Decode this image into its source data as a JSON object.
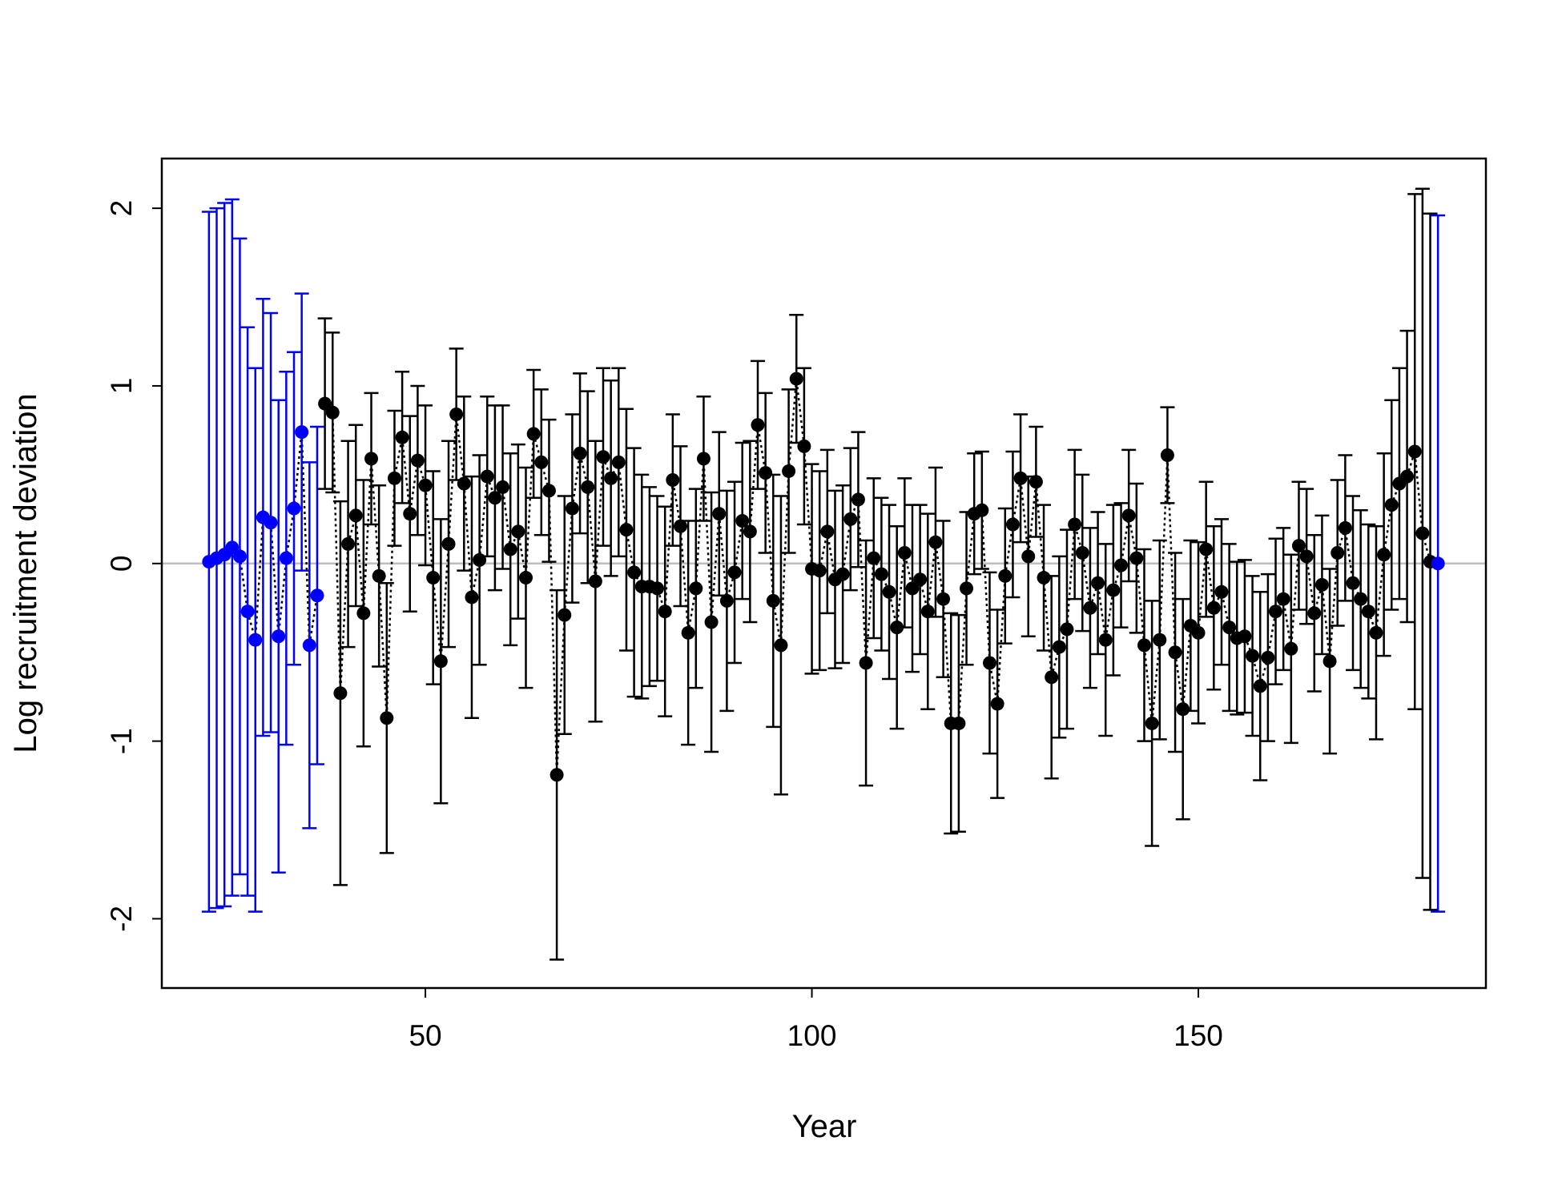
{
  "chart_data": {
    "type": "errorbar",
    "x_label": "Year",
    "y_label": "Log recruitment deviation",
    "xlim": [
      15.9,
      187.2
    ],
    "ylim": [
      -2.39,
      2.28
    ],
    "xticks": [
      50,
      100,
      150
    ],
    "yticks": [
      -2,
      -1,
      0,
      1,
      2
    ],
    "reference_line": 0,
    "reference_color": "#bebebe",
    "line_color": "black",
    "series": [
      {
        "color": "blue",
        "x": [
          22,
          23,
          24,
          25,
          26,
          27,
          28,
          29,
          30,
          31,
          32,
          33,
          34,
          35,
          36
        ],
        "values": [
          0.01,
          0.03,
          0.05,
          0.09,
          0.04,
          -0.27,
          -0.43,
          0.26,
          0.23,
          -0.41,
          0.03,
          0.31,
          0.74,
          -0.46,
          -0.18
        ],
        "errors": [
          1.97,
          1.97,
          1.98,
          1.96,
          1.79,
          1.6,
          1.53,
          1.23,
          1.18,
          1.33,
          1.05,
          0.88,
          0.78,
          1.03,
          0.95
        ]
      },
      {
        "color": "black",
        "x": [
          37,
          38,
          39,
          40,
          41,
          42,
          43,
          44,
          45,
          46,
          47,
          48,
          49,
          50,
          51,
          52,
          53,
          54,
          55,
          56,
          57,
          58,
          59,
          60,
          61,
          62,
          63,
          64,
          65,
          66,
          67,
          68,
          69,
          70,
          71,
          72,
          73,
          74,
          75,
          76,
          77,
          78,
          79,
          80,
          81,
          82,
          83,
          84,
          85,
          86,
          87,
          88,
          89,
          90,
          91,
          92,
          93,
          94,
          95,
          96,
          97,
          98,
          99,
          100,
          101,
          102,
          103,
          104,
          105,
          106,
          107,
          108,
          109,
          110,
          111,
          112,
          113,
          114,
          115,
          116,
          117,
          118,
          119,
          120,
          121,
          122,
          123,
          124,
          125,
          126,
          127,
          128,
          129,
          130,
          131,
          132,
          133,
          134,
          135,
          136,
          137,
          138,
          139,
          140,
          141,
          142,
          143,
          144,
          145,
          146,
          147,
          148,
          149,
          150,
          151,
          152,
          153,
          154,
          155,
          156,
          157,
          158,
          159,
          160,
          161,
          162,
          163,
          164,
          165,
          166,
          167,
          168,
          169,
          170,
          171,
          172,
          173,
          174,
          175,
          176,
          177,
          178,
          179,
          180
        ],
        "values": [
          0.9,
          0.85,
          -0.73,
          0.11,
          0.27,
          -0.28,
          0.59,
          -0.07,
          -0.87,
          0.48,
          0.71,
          0.28,
          0.58,
          0.44,
          -0.08,
          -0.55,
          0.11,
          0.84,
          0.45,
          -0.19,
          0.02,
          0.49,
          0.37,
          0.43,
          0.08,
          0.18,
          -0.08,
          0.73,
          0.57,
          0.41,
          -1.19,
          -0.29,
          0.31,
          0.62,
          0.43,
          -0.1,
          0.6,
          0.48,
          0.57,
          0.19,
          -0.05,
          -0.13,
          -0.13,
          -0.14,
          -0.27,
          0.47,
          0.21,
          -0.39,
          -0.14,
          0.59,
          -0.33,
          0.28,
          -0.21,
          -0.05,
          0.24,
          0.18,
          0.78,
          0.51,
          -0.21,
          -0.46,
          0.52,
          1.04,
          0.66,
          -0.03,
          -0.04,
          0.18,
          -0.09,
          -0.06,
          0.25,
          0.36,
          -0.56,
          0.03,
          -0.06,
          -0.16,
          -0.36,
          0.06,
          -0.14,
          -0.09,
          -0.27,
          0.12,
          -0.2,
          -0.9,
          -0.9,
          -0.14,
          0.28,
          0.3,
          -0.56,
          -0.79,
          -0.07,
          0.22,
          0.48,
          0.04,
          0.46,
          -0.08,
          -0.64,
          -0.47,
          -0.37,
          0.22,
          0.06,
          -0.25,
          -0.11,
          -0.43,
          -0.15,
          -0.01,
          0.27,
          0.03,
          -0.46,
          -0.9,
          -0.43,
          0.61,
          -0.5,
          -0.82,
          -0.35,
          -0.39,
          0.08,
          -0.25,
          -0.16,
          -0.36,
          -0.42,
          -0.41,
          -0.52,
          -0.69,
          -0.53,
          -0.27,
          -0.2,
          -0.48,
          0.1,
          0.04,
          -0.28,
          -0.12,
          -0.55,
          0.06,
          0.2,
          -0.11,
          -0.2,
          -0.27,
          -0.39,
          0.05,
          0.33,
          0.45,
          0.49,
          0.63,
          0.17,
          0.01
        ],
        "errors": [
          0.48,
          0.45,
          1.08,
          0.58,
          0.51,
          0.75,
          0.37,
          0.51,
          0.76,
          0.38,
          0.37,
          0.55,
          0.42,
          0.45,
          0.6,
          0.8,
          0.58,
          0.37,
          0.49,
          0.68,
          0.59,
          0.45,
          0.52,
          0.46,
          0.54,
          0.49,
          0.62,
          0.36,
          0.41,
          0.4,
          1.04,
          0.67,
          0.53,
          0.45,
          0.54,
          0.79,
          0.5,
          0.55,
          0.53,
          0.68,
          0.7,
          0.63,
          0.56,
          0.52,
          0.59,
          0.37,
          0.45,
          0.63,
          0.56,
          0.35,
          0.73,
          0.46,
          0.62,
          0.51,
          0.44,
          0.51,
          0.36,
          0.45,
          0.71,
          0.84,
          0.46,
          0.36,
          0.44,
          0.59,
          0.56,
          0.46,
          0.5,
          0.5,
          0.4,
          0.38,
          0.69,
          0.45,
          0.43,
          0.49,
          0.57,
          0.42,
          0.47,
          0.42,
          0.55,
          0.42,
          0.44,
          0.62,
          0.61,
          0.43,
          0.34,
          0.33,
          0.51,
          0.53,
          0.38,
          0.41,
          0.36,
          0.45,
          0.31,
          0.41,
          0.57,
          0.51,
          0.56,
          0.42,
          0.44,
          0.45,
          0.4,
          0.54,
          0.48,
          0.35,
          0.37,
          0.42,
          0.54,
          0.69,
          0.56,
          0.27,
          0.56,
          0.62,
          0.48,
          0.51,
          0.38,
          0.46,
          0.41,
          0.47,
          0.43,
          0.43,
          0.45,
          0.53,
          0.47,
          0.41,
          0.4,
          0.53,
          0.36,
          0.38,
          0.44,
          0.39,
          0.52,
          0.41,
          0.41,
          0.49,
          0.5,
          0.49,
          0.6,
          0.57,
          0.59,
          0.65,
          0.82,
          1.45,
          1.94,
          1.96
        ]
      },
      {
        "color": "blue",
        "x": [
          181
        ],
        "values": [
          0.0
        ],
        "errors": [
          1.96
        ]
      }
    ]
  }
}
